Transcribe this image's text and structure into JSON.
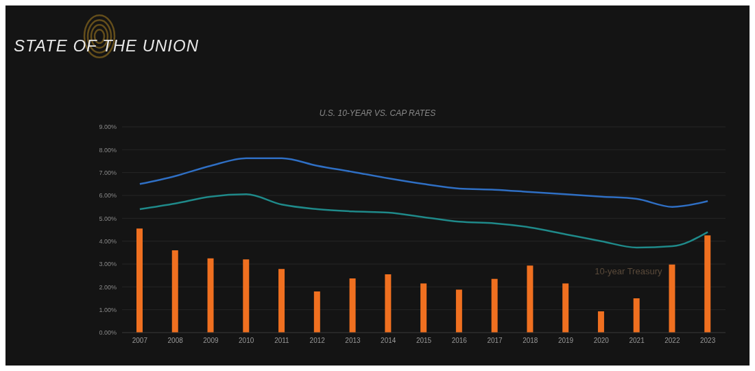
{
  "chart_data": {
    "type": "bar",
    "title": "STATE OF THE UNION",
    "subtitle": "U.S. 10-YEAR VS. CAP RATES",
    "categories": [
      "2007",
      "2008",
      "2009",
      "2010",
      "2011",
      "2012",
      "2013",
      "2014",
      "2015",
      "2016",
      "2017",
      "2018",
      "2019",
      "2020",
      "2021",
      "2022",
      "2023"
    ],
    "series": [
      {
        "name": "10-year Treasury",
        "color": "#f07020",
        "values": [
          4.55,
          3.6,
          3.25,
          3.2,
          2.78,
          1.8,
          2.37,
          2.55,
          2.15,
          1.88,
          2.35,
          2.93,
          2.15,
          0.93,
          1.5,
          2.98,
          4.25
        ]
      },
      {
        "type": "line",
        "color": "#2f6fc4",
        "values": [
          6.5,
          6.85,
          7.3,
          7.63,
          7.63,
          7.3,
          7.03,
          6.75,
          6.5,
          6.3,
          6.25,
          6.15,
          6.05,
          5.95,
          5.85,
          5.5,
          5.75
        ]
      },
      {
        "type": "line",
        "color": "#1f8a8a",
        "values": [
          5.4,
          5.65,
          5.95,
          6.05,
          5.6,
          5.4,
          5.3,
          5.25,
          5.05,
          4.85,
          4.78,
          4.6,
          4.3,
          4.0,
          3.72,
          3.78,
          4.4
        ]
      }
    ],
    "ylim": [
      0,
      9
    ],
    "yticks": [
      {
        "value": 0,
        "label": "0.00%"
      },
      {
        "value": 1,
        "label": "1.00%"
      },
      {
        "value": 2,
        "label": "2.00%"
      },
      {
        "value": 3,
        "label": "3.00%"
      },
      {
        "value": 4,
        "label": "4.00%"
      },
      {
        "value": 5,
        "label": "5.00%"
      },
      {
        "value": 6,
        "label": "6.00%"
      },
      {
        "value": 7,
        "label": "7.00%"
      },
      {
        "value": 8,
        "label": "8.00%"
      },
      {
        "value": 9,
        "label": "9.00%"
      }
    ],
    "grid": "y",
    "legend": false,
    "marker": "none",
    "line_style": "solid"
  }
}
